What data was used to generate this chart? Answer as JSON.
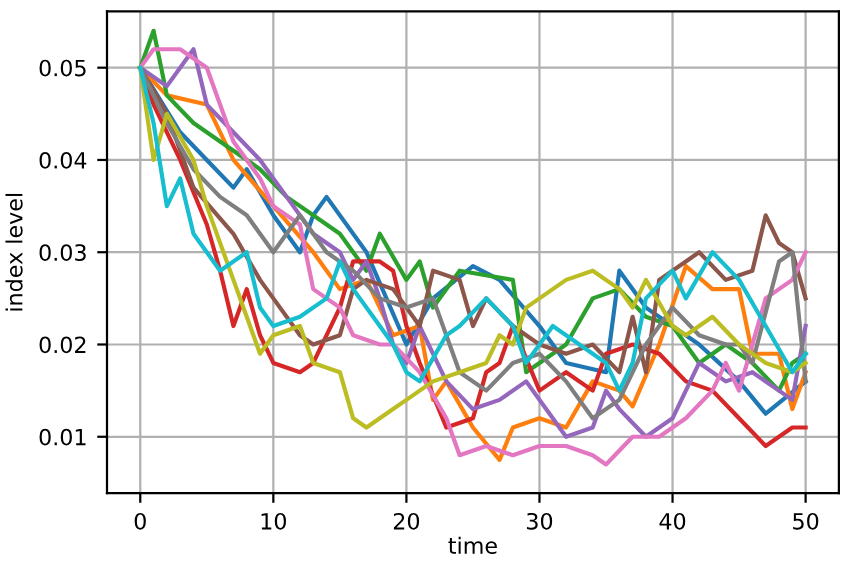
{
  "chart_data": {
    "type": "line",
    "xlabel": "time",
    "ylabel": "index level",
    "xlim": [
      -2.5,
      52.5
    ],
    "ylim": [
      0.0039,
      0.0561
    ],
    "xticks": [
      0,
      10,
      20,
      30,
      40,
      50
    ],
    "yticks": [
      0.01,
      0.02,
      0.03,
      0.04,
      0.05
    ],
    "grid": true,
    "series": [
      {
        "color": "#1f77b4",
        "x": [
          0,
          3,
          5,
          7,
          8,
          10,
          12,
          13,
          14,
          17,
          20,
          22,
          25,
          27,
          30,
          32,
          35,
          36,
          38,
          42,
          45,
          47,
          50
        ],
        "values": [
          0.05,
          0.043,
          0.04,
          0.037,
          0.039,
          0.034,
          0.03,
          0.034,
          0.036,
          0.03,
          0.02,
          0.025,
          0.0285,
          0.027,
          0.022,
          0.018,
          0.017,
          0.028,
          0.024,
          0.02,
          0.016,
          0.0125,
          0.016
        ]
      },
      {
        "color": "#ff7f0e",
        "x": [
          0,
          2,
          5,
          7,
          10,
          13,
          15,
          17,
          19,
          21,
          22,
          23,
          25,
          27,
          28,
          30,
          32,
          34,
          36,
          37,
          39,
          41,
          43,
          45,
          46,
          48,
          49,
          50
        ],
        "values": [
          0.05,
          0.047,
          0.046,
          0.04,
          0.035,
          0.03,
          0.026,
          0.027,
          0.021,
          0.022,
          0.014,
          0.016,
          0.011,
          0.0075,
          0.011,
          0.012,
          0.011,
          0.016,
          0.015,
          0.0133,
          0.02,
          0.0285,
          0.026,
          0.026,
          0.019,
          0.019,
          0.013,
          0.017
        ]
      },
      {
        "color": "#2ca02c",
        "x": [
          0,
          1,
          2,
          4,
          6,
          9,
          11,
          13,
          15,
          17,
          18,
          20,
          21,
          22,
          24,
          28,
          29,
          31,
          32,
          34,
          36,
          38,
          40,
          42,
          44,
          46,
          48,
          49,
          50
        ],
        "values": [
          0.05,
          0.054,
          0.047,
          0.044,
          0.042,
          0.039,
          0.036,
          0.034,
          0.032,
          0.028,
          0.032,
          0.027,
          0.029,
          0.024,
          0.028,
          0.027,
          0.017,
          0.019,
          0.02,
          0.025,
          0.026,
          0.023,
          0.022,
          0.018,
          0.02,
          0.018,
          0.015,
          0.018,
          0.019
        ]
      },
      {
        "color": "#d62728",
        "x": [
          0,
          1,
          3,
          5,
          6,
          7,
          8,
          9,
          10,
          12,
          13,
          15,
          16,
          18,
          19,
          20,
          21,
          23,
          25,
          26,
          27,
          28,
          30,
          32,
          34,
          35,
          37,
          39,
          41,
          43,
          45,
          47,
          49,
          50
        ],
        "values": [
          0.05,
          0.046,
          0.04,
          0.033,
          0.028,
          0.022,
          0.026,
          0.021,
          0.018,
          0.017,
          0.018,
          0.024,
          0.029,
          0.029,
          0.028,
          0.022,
          0.018,
          0.011,
          0.012,
          0.017,
          0.018,
          0.022,
          0.015,
          0.017,
          0.015,
          0.019,
          0.02,
          0.019,
          0.016,
          0.015,
          0.012,
          0.009,
          0.011,
          0.011
        ]
      },
      {
        "color": "#9467bd",
        "x": [
          0,
          2,
          4,
          5,
          7,
          9,
          11,
          13,
          15,
          16,
          17,
          18,
          19,
          20,
          21,
          23,
          25,
          27,
          29,
          31,
          32,
          34,
          35,
          36,
          38,
          40,
          42,
          44,
          46,
          48,
          49,
          50
        ],
        "values": [
          0.05,
          0.048,
          0.052,
          0.046,
          0.043,
          0.04,
          0.036,
          0.032,
          0.03,
          0.027,
          0.029,
          0.025,
          0.02,
          0.018,
          0.022,
          0.016,
          0.013,
          0.014,
          0.016,
          0.012,
          0.01,
          0.011,
          0.015,
          0.013,
          0.01,
          0.012,
          0.018,
          0.016,
          0.017,
          0.015,
          0.014,
          0.022
        ]
      },
      {
        "color": "#8c564b",
        "x": [
          0,
          2,
          4,
          7,
          9,
          10,
          12,
          13,
          15,
          16,
          17,
          19,
          21,
          22,
          24,
          25,
          26,
          28,
          30,
          32,
          34,
          36,
          37,
          38,
          39,
          41,
          42,
          44,
          46,
          47,
          48,
          49,
          50
        ],
        "values": [
          0.05,
          0.045,
          0.037,
          0.032,
          0.027,
          0.025,
          0.021,
          0.02,
          0.021,
          0.026,
          0.027,
          0.026,
          0.022,
          0.028,
          0.027,
          0.022,
          0.025,
          0.022,
          0.02,
          0.019,
          0.02,
          0.017,
          0.023,
          0.017,
          0.027,
          0.029,
          0.03,
          0.027,
          0.028,
          0.034,
          0.031,
          0.03,
          0.025
        ]
      },
      {
        "color": "#e377c2",
        "x": [
          0,
          1,
          3,
          5,
          7,
          9,
          10,
          12,
          13,
          15,
          16,
          18,
          19,
          21,
          23,
          24,
          26,
          28,
          30,
          32,
          34,
          35,
          37,
          39,
          41,
          43,
          44,
          45,
          47,
          49,
          50
        ],
        "values": [
          0.05,
          0.052,
          0.052,
          0.05,
          0.042,
          0.038,
          0.035,
          0.033,
          0.026,
          0.024,
          0.021,
          0.02,
          0.02,
          0.017,
          0.012,
          0.008,
          0.009,
          0.008,
          0.009,
          0.009,
          0.008,
          0.007,
          0.01,
          0.01,
          0.012,
          0.015,
          0.018,
          0.015,
          0.025,
          0.027,
          0.03
        ]
      },
      {
        "color": "#7f7f7f",
        "x": [
          0,
          2,
          4,
          6,
          8,
          10,
          12,
          14,
          16,
          18,
          20,
          22,
          24,
          26,
          28,
          30,
          32,
          34,
          36,
          38,
          40,
          42,
          44,
          45,
          46,
          48,
          49,
          50
        ],
        "values": [
          0.05,
          0.044,
          0.039,
          0.036,
          0.034,
          0.03,
          0.034,
          0.03,
          0.028,
          0.025,
          0.024,
          0.025,
          0.017,
          0.015,
          0.018,
          0.019,
          0.016,
          0.012,
          0.014,
          0.02,
          0.024,
          0.021,
          0.02,
          0.02,
          0.018,
          0.029,
          0.03,
          0.016
        ]
      },
      {
        "color": "#bcbd22",
        "x": [
          0,
          1,
          2,
          4,
          5,
          7,
          8,
          9,
          10,
          12,
          13,
          15,
          16,
          17,
          19,
          20,
          22,
          24,
          26,
          27,
          28,
          29,
          30,
          32,
          34,
          36,
          37,
          38,
          40,
          41,
          43,
          45,
          47,
          49,
          50
        ],
        "values": [
          0.05,
          0.04,
          0.045,
          0.04,
          0.035,
          0.027,
          0.023,
          0.019,
          0.021,
          0.022,
          0.018,
          0.017,
          0.012,
          0.011,
          0.013,
          0.014,
          0.016,
          0.017,
          0.018,
          0.021,
          0.02,
          0.024,
          0.025,
          0.027,
          0.028,
          0.026,
          0.024,
          0.027,
          0.022,
          0.021,
          0.023,
          0.02,
          0.018,
          0.017,
          0.018
        ]
      },
      {
        "color": "#17becf",
        "x": [
          0,
          1,
          2,
          3,
          4,
          5,
          6,
          8,
          9,
          10,
          12,
          14,
          15,
          16,
          18,
          19,
          20,
          21,
          23,
          24,
          26,
          28,
          29,
          31,
          33,
          35,
          36,
          37,
          38,
          40,
          41,
          43,
          45,
          47,
          49,
          50
        ],
        "values": [
          0.05,
          0.044,
          0.035,
          0.038,
          0.032,
          0.03,
          0.028,
          0.03,
          0.024,
          0.022,
          0.023,
          0.025,
          0.029,
          0.026,
          0.022,
          0.02,
          0.017,
          0.016,
          0.021,
          0.022,
          0.025,
          0.022,
          0.018,
          0.022,
          0.02,
          0.018,
          0.015,
          0.018,
          0.025,
          0.028,
          0.025,
          0.03,
          0.027,
          0.022,
          0.017,
          0.019
        ]
      }
    ]
  }
}
